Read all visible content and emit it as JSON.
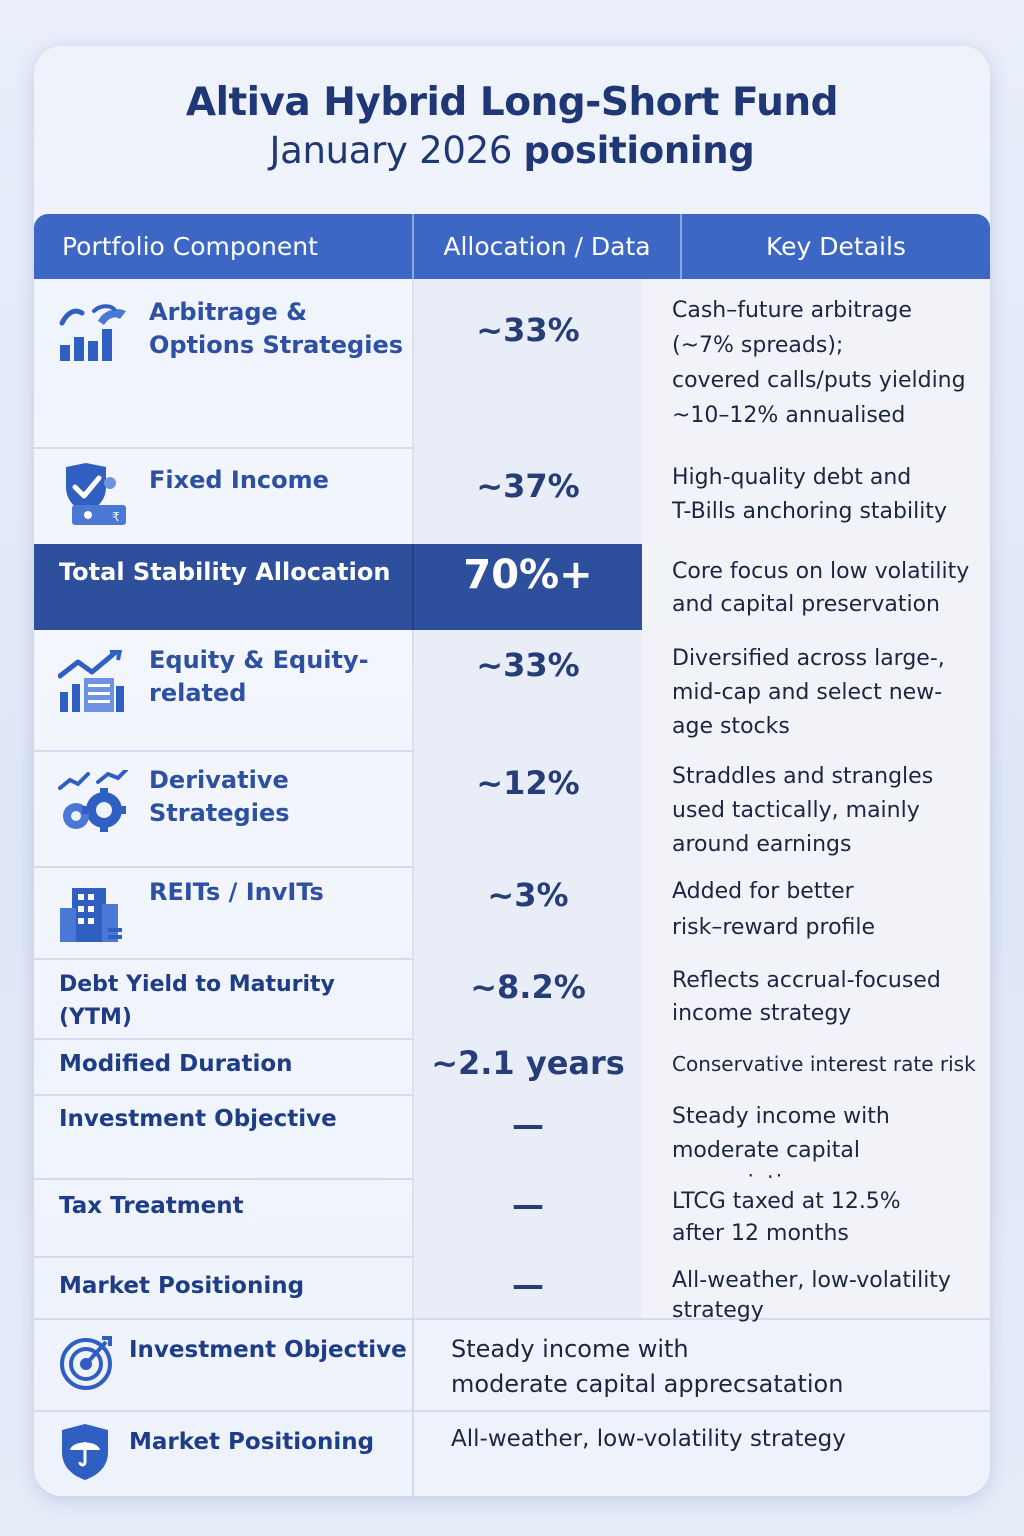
{
  "header": {
    "title": "Altiva Hybrid Long-Short Fund",
    "subtitle_month": "January 2026",
    "subtitle_rest": "positioning"
  },
  "columns": [
    "Portfolio Component",
    "Allocation / Data",
    "Key Details"
  ],
  "rows": [
    {
      "label": "Arbitrage & Options Strategies",
      "value": "~33%",
      "detail": [
        "Cash–future arbitrage",
        "(~7% spreads);",
        "covered calls/puts yielding",
        "~10–12% annualised"
      ],
      "icon": "bar-chart-hand-icon"
    },
    {
      "label": "Fixed Income",
      "value": "~37%",
      "detail": [
        "High-quality debt and",
        "T-Bills anchoring stability"
      ],
      "icon": "shield-check-icon"
    },
    {
      "label": "Total Stability Allocation",
      "value": "70%+",
      "detail": [
        "Core focus on low volatility",
        "and capital preservation"
      ]
    },
    {
      "label": "Equity & Equity-related",
      "value": "~33%",
      "detail": [
        "Diversified across large-,",
        "mid-cap and select new-",
        "age stocks"
      ],
      "icon": "trend-chart-icon"
    },
    {
      "label": "Derivative Strategies",
      "value": "~12%",
      "detail": [
        "Straddles and strangles",
        "used tactically, mainly",
        "around earnings"
      ],
      "icon": "gear-trend-icon"
    },
    {
      "label": "REITs / InvITs",
      "value": "~3%",
      "detail": [
        "Added for better",
        "risk–reward profile"
      ],
      "icon": "building-icon"
    },
    {
      "label": "Debt Yield to Maturity (YTM)",
      "value": "~8.2%",
      "detail": [
        "Reflects accrual-focused",
        "income strategy"
      ]
    },
    {
      "label": "Modified Duration",
      "value": "~2.1 years",
      "detail": [
        "Conservative interest rate risk"
      ]
    },
    {
      "label": "Investment Objective",
      "value": "—",
      "detail": [
        "Steady income with",
        "moderate capital appreciation"
      ]
    },
    {
      "label": "Tax Treatment",
      "value": "—",
      "detail": [
        "LTCG taxed at 12.5%",
        "after 12 months"
      ]
    },
    {
      "label": "Market Positioning",
      "value": "—",
      "detail": [
        "All-weather, low-volatility",
        "strategy"
      ]
    }
  ],
  "footer_rows": [
    {
      "label": "Investment Objective",
      "detail": [
        "Steady income with",
        "moderate capital apprecsatation"
      ],
      "icon": "target-icon"
    },
    {
      "label": "Market Positioning",
      "detail": [
        "All-weather, low-volatility strategy"
      ],
      "icon": "umbrella-shield-icon"
    }
  ]
}
